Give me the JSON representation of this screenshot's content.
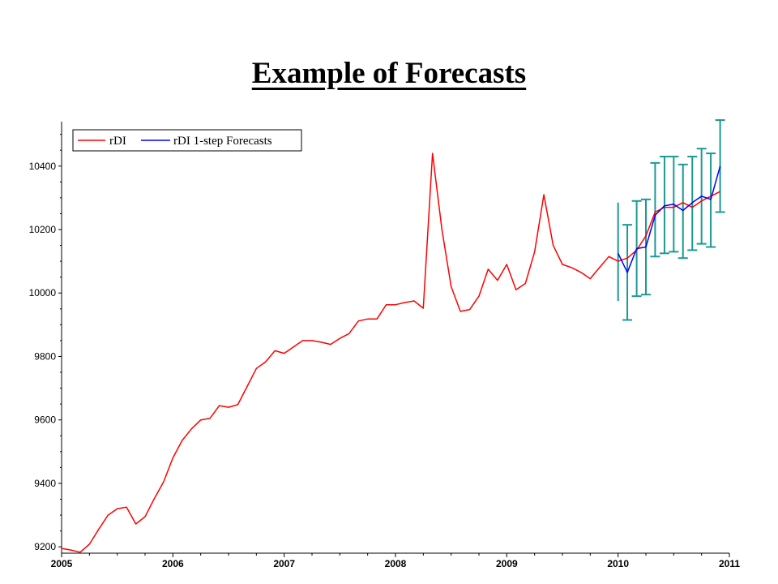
{
  "title": "Example of Forecasts",
  "chart_data": {
    "type": "line",
    "title": "",
    "xlabel": "",
    "ylabel": "",
    "xlim": [
      2005.0,
      2011.0
    ],
    "ylim": [
      9180,
      10540
    ],
    "x_ticks": [
      2005,
      2006,
      2007,
      2008,
      2009,
      2010,
      2011
    ],
    "y_ticks": [
      9200,
      9400,
      9600,
      9800,
      10000,
      10200,
      10400
    ],
    "legend_position": "top-left",
    "grid": false,
    "colors": {
      "actual": "#ff0000",
      "forecast": "#0000ff",
      "error_bars": "#1a9a92"
    },
    "series": [
      {
        "name": "rDI",
        "x": [
          2005.0,
          2005.083,
          2005.167,
          2005.25,
          2005.333,
          2005.417,
          2005.5,
          2005.583,
          2005.667,
          2005.75,
          2005.833,
          2005.917,
          2006.0,
          2006.083,
          2006.167,
          2006.25,
          2006.333,
          2006.417,
          2006.5,
          2006.583,
          2006.667,
          2006.75,
          2006.833,
          2006.917,
          2007.0,
          2007.083,
          2007.167,
          2007.25,
          2007.333,
          2007.417,
          2007.5,
          2007.583,
          2007.667,
          2007.75,
          2007.833,
          2007.917,
          2008.0,
          2008.083,
          2008.167,
          2008.25,
          2008.333,
          2008.417,
          2008.5,
          2008.583,
          2008.667,
          2008.75,
          2008.833,
          2008.917,
          2009.0,
          2009.083,
          2009.167,
          2009.25,
          2009.333,
          2009.417,
          2009.5,
          2009.583,
          2009.667,
          2009.75,
          2009.833,
          2009.917,
          2010.0,
          2010.083,
          2010.167,
          2010.25,
          2010.333,
          2010.417,
          2010.5,
          2010.583,
          2010.667,
          2010.75,
          2010.833,
          2010.917
        ],
        "values": [
          9195,
          9190,
          9183,
          9208,
          9255,
          9300,
          9320,
          9325,
          9272,
          9295,
          9352,
          9405,
          9480,
          9535,
          9572,
          9600,
          9605,
          9645,
          9640,
          9648,
          9705,
          9762,
          9783,
          9818,
          9810,
          9830,
          9850,
          9850,
          9845,
          9838,
          9857,
          9872,
          9912,
          9918,
          9918,
          9963,
          9963,
          9970,
          9975,
          9952,
          10440,
          10200,
          10020,
          9942,
          9948,
          9990,
          10075,
          10040,
          10090,
          10010,
          10030,
          10130,
          10310,
          10150,
          10090,
          10080,
          10065,
          10045,
          10080,
          10115,
          10100,
          10110,
          10135,
          10180,
          10255,
          10270,
          10270,
          10285,
          10270,
          10290,
          10305,
          10320
        ]
      },
      {
        "name": "rDI 1-step Forecasts",
        "x": [
          2010.0,
          2010.083,
          2010.167,
          2010.25,
          2010.333,
          2010.417,
          2010.5,
          2010.583,
          2010.667,
          2010.75,
          2010.833,
          2010.917
        ],
        "values": [
          10125,
          10065,
          10140,
          10145,
          10245,
          10275,
          10280,
          10260,
          10285,
          10305,
          10295,
          10400
        ],
        "error_low": [
          9975,
          9915,
          9990,
          9995,
          10115,
          10125,
          10130,
          10110,
          10135,
          10155,
          10145,
          10255
        ],
        "error_high": [
          10285,
          10215,
          10290,
          10295,
          10410,
          10430,
          10430,
          10405,
          10430,
          10455,
          10440,
          10545
        ]
      }
    ]
  }
}
